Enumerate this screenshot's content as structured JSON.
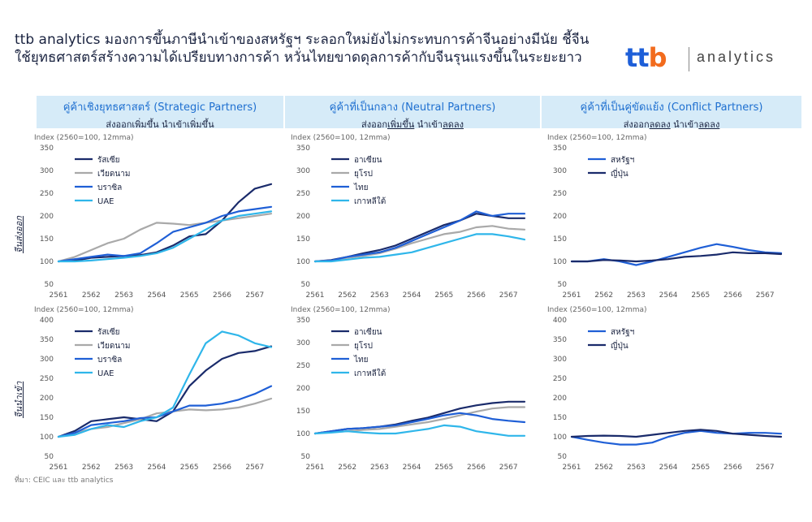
{
  "headline": "ttb analytics มองการขึ้นภาษีนำเข้าของสหรัฐฯ ระลอกใหม่ยังไม่กระทบการค้าจีนอย่างมีนัย ชี้จีนใช้ยุทธศาสตร์สร้างความได้เปรียบทางการค้า หวั่นไทยขาดดุลการค้ากับจีนรุนแรงขึ้นในระยะยาว",
  "logo": {
    "mark_t1": "t",
    "mark_t2": "t",
    "mark_b": "b",
    "word": "analytics",
    "colors": {
      "t": "#1e5fd8",
      "b": "#f26b1d"
    }
  },
  "columns": [
    {
      "title": "คู่ค้าเชิงยุทธศาสตร์ (Strategic Partners)",
      "sub_a": "ส่งออกเพิ่มขึ้น นำเข้าเพิ่มขึ้น",
      "sub_a_underline": "",
      "sub_b": "",
      "sub_b_underline": ""
    },
    {
      "title": "คู่ค้าที่เป็นกลาง (Neutral Partners)",
      "sub_a": "ส่งออก",
      "sub_a_underline": "เพิ่มขึ้น",
      "sub_b": " นำเข้า",
      "sub_b_underline": "ลดลง"
    },
    {
      "title": "คู่ค้าที่เป็นคู่ขัดแย้ง (Conflict Partners)",
      "sub_a": "ส่งออก",
      "sub_a_underline": "ลดลง",
      "sub_b": " นำเข้า",
      "sub_b_underline": "ลดลง"
    }
  ],
  "row_labels": [
    "จีนส่งออก",
    "จีนนำเข้า"
  ],
  "source": "ที่มา: CEIC และ ttb analytics",
  "colors": {
    "dark_navy": "#1a2b6b",
    "gray": "#a9a9a9",
    "blue": "#1f5fd6",
    "light_blue": "#2fb6ea",
    "header_bg": "#d6ebf8",
    "header_title": "#1e6fd0"
  },
  "chart_data": [
    {
      "id": "strategic-export",
      "type": "line",
      "ylabel": "Index (2560=100, 12mma)",
      "ylim": [
        50,
        350
      ],
      "yticks": [
        50,
        100,
        150,
        200,
        250,
        300,
        350
      ],
      "xlim": [
        2561,
        2567.6
      ],
      "xticks": [
        "2561",
        "2562",
        "2563",
        "2564",
        "2565",
        "2566",
        "2567"
      ],
      "grid": false,
      "legend": "top-left",
      "series": [
        {
          "name": "รัสเซีย",
          "color": "#1a2b6b",
          "x": [
            2561,
            2561.5,
            2562,
            2562.5,
            2563,
            2563.5,
            2564,
            2564.5,
            2565,
            2565.5,
            2566,
            2566.5,
            2567,
            2567.5
          ],
          "y": [
            100,
            102,
            108,
            110,
            112,
            114,
            120,
            135,
            155,
            160,
            190,
            230,
            260,
            270
          ]
        },
        {
          "name": "เวียดนาม",
          "color": "#a9a9a9",
          "x": [
            2561,
            2561.5,
            2562,
            2562.5,
            2563,
            2563.5,
            2564,
            2564.5,
            2565,
            2565.5,
            2566,
            2566.5,
            2567,
            2567.5
          ],
          "y": [
            100,
            110,
            125,
            140,
            150,
            170,
            185,
            183,
            180,
            185,
            190,
            195,
            200,
            205
          ]
        },
        {
          "name": "บราซิล",
          "color": "#1f5fd6",
          "x": [
            2561,
            2561.5,
            2562,
            2562.5,
            2563,
            2563.5,
            2564,
            2564.5,
            2565,
            2565.5,
            2566,
            2566.5,
            2567,
            2567.5
          ],
          "y": [
            100,
            105,
            110,
            115,
            112,
            118,
            140,
            165,
            175,
            185,
            200,
            210,
            215,
            220
          ]
        },
        {
          "name": "UAE",
          "color": "#2fb6ea",
          "x": [
            2561,
            2561.5,
            2562,
            2562.5,
            2563,
            2563.5,
            2564,
            2564.5,
            2565,
            2565.5,
            2566,
            2566.5,
            2567,
            2567.5
          ],
          "y": [
            100,
            100,
            102,
            105,
            108,
            112,
            118,
            130,
            150,
            170,
            190,
            200,
            205,
            210
          ]
        }
      ]
    },
    {
      "id": "neutral-export",
      "type": "line",
      "ylabel": "Index (2560=100, 12mma)",
      "ylim": [
        50,
        350
      ],
      "yticks": [
        50,
        100,
        150,
        200,
        250,
        300,
        350
      ],
      "xlim": [
        2561,
        2567.6
      ],
      "xticks": [
        "2561",
        "2562",
        "2563",
        "2564",
        "2565",
        "2566",
        "2567"
      ],
      "grid": false,
      "legend": "top-left",
      "series": [
        {
          "name": "อาเซียน",
          "color": "#1a2b6b",
          "x": [
            2561,
            2561.5,
            2562,
            2562.5,
            2563,
            2563.5,
            2564,
            2564.5,
            2565,
            2565.5,
            2566,
            2566.5,
            2567,
            2567.5
          ],
          "y": [
            100,
            103,
            110,
            118,
            125,
            135,
            150,
            165,
            180,
            190,
            205,
            200,
            195,
            195
          ]
        },
        {
          "name": "ยุโรป",
          "color": "#a9a9a9",
          "x": [
            2561,
            2561.5,
            2562,
            2562.5,
            2563,
            2563.5,
            2564,
            2564.5,
            2565,
            2565.5,
            2566,
            2566.5,
            2567,
            2567.5
          ],
          "y": [
            100,
            102,
            108,
            112,
            118,
            128,
            140,
            150,
            160,
            165,
            175,
            178,
            172,
            170
          ]
        },
        {
          "name": "ไทย",
          "color": "#1f5fd6",
          "x": [
            2561,
            2561.5,
            2562,
            2562.5,
            2563,
            2563.5,
            2564,
            2564.5,
            2565,
            2565.5,
            2566,
            2566.5,
            2567,
            2567.5
          ],
          "y": [
            100,
            102,
            110,
            115,
            120,
            130,
            145,
            160,
            175,
            190,
            210,
            200,
            205,
            205
          ]
        },
        {
          "name": "เกาหลีใต้",
          "color": "#2fb6ea",
          "x": [
            2561,
            2561.5,
            2562,
            2562.5,
            2563,
            2563.5,
            2564,
            2564.5,
            2565,
            2565.5,
            2566,
            2566.5,
            2567,
            2567.5
          ],
          "y": [
            100,
            100,
            104,
            108,
            110,
            115,
            120,
            130,
            140,
            150,
            160,
            160,
            155,
            148
          ]
        }
      ]
    },
    {
      "id": "conflict-export",
      "type": "line",
      "ylabel": "Index (2560=100, 12mma)",
      "ylim": [
        50,
        350
      ],
      "yticks": [
        50,
        100,
        150,
        200,
        250,
        300,
        350
      ],
      "xlim": [
        2561,
        2567.6
      ],
      "xticks": [
        "2561",
        "2562",
        "2563",
        "2564",
        "2565",
        "2566",
        "2567"
      ],
      "grid": false,
      "legend": "top-left",
      "series": [
        {
          "name": "สหรัฐฯ",
          "color": "#1f5fd6",
          "x": [
            2561,
            2561.5,
            2562,
            2562.5,
            2563,
            2563.5,
            2564,
            2564.5,
            2565,
            2565.5,
            2566,
            2566.5,
            2567,
            2567.5
          ],
          "y": [
            100,
            100,
            105,
            100,
            92,
            100,
            110,
            120,
            130,
            138,
            132,
            125,
            120,
            118
          ]
        },
        {
          "name": "ญี่ปุ่น",
          "color": "#1a2b6b",
          "x": [
            2561,
            2561.5,
            2562,
            2562.5,
            2563,
            2563.5,
            2564,
            2564.5,
            2565,
            2565.5,
            2566,
            2566.5,
            2567,
            2567.5
          ],
          "y": [
            100,
            100,
            103,
            102,
            100,
            102,
            105,
            110,
            112,
            115,
            120,
            118,
            118,
            116
          ]
        }
      ]
    },
    {
      "id": "strategic-import",
      "type": "line",
      "ylabel": "Index (2560=100, 12mma)",
      "ylim": [
        50,
        400
      ],
      "yticks": [
        50,
        100,
        150,
        200,
        250,
        300,
        350,
        400
      ],
      "xlim": [
        2561,
        2567.6
      ],
      "xticks": [
        "2561",
        "2562",
        "2563",
        "2564",
        "2565",
        "2566",
        "2567"
      ],
      "grid": false,
      "legend": "top-left",
      "series": [
        {
          "name": "รัสเซีย",
          "color": "#1a2b6b",
          "x": [
            2561,
            2561.5,
            2562,
            2562.5,
            2563,
            2563.5,
            2564,
            2564.5,
            2565,
            2565.5,
            2566,
            2566.5,
            2567,
            2567.5
          ],
          "y": [
            100,
            115,
            140,
            145,
            150,
            145,
            140,
            165,
            230,
            270,
            300,
            315,
            320,
            332
          ]
        },
        {
          "name": "เวียดนาม",
          "color": "#a9a9a9",
          "x": [
            2561,
            2561.5,
            2562,
            2562.5,
            2563,
            2563.5,
            2564,
            2564.5,
            2565,
            2565.5,
            2566,
            2566.5,
            2567,
            2567.5
          ],
          "y": [
            100,
            110,
            120,
            125,
            135,
            145,
            160,
            165,
            170,
            168,
            170,
            175,
            185,
            198
          ]
        },
        {
          "name": "บราซิล",
          "color": "#1f5fd6",
          "x": [
            2561,
            2561.5,
            2562,
            2562.5,
            2563,
            2563.5,
            2564,
            2564.5,
            2565,
            2565.5,
            2566,
            2566.5,
            2567,
            2567.5
          ],
          "y": [
            100,
            110,
            130,
            135,
            140,
            148,
            150,
            165,
            180,
            180,
            185,
            195,
            210,
            230
          ]
        },
        {
          "name": "UAE",
          "color": "#2fb6ea",
          "x": [
            2561,
            2561.5,
            2562,
            2562.5,
            2563,
            2563.5,
            2564,
            2564.5,
            2565,
            2565.5,
            2566,
            2566.5,
            2567,
            2567.5
          ],
          "y": [
            100,
            105,
            120,
            130,
            125,
            140,
            150,
            175,
            260,
            340,
            370,
            360,
            340,
            330
          ]
        }
      ]
    },
    {
      "id": "neutral-import",
      "type": "line",
      "ylabel": "Index (2560=100, 12mma)",
      "ylim": [
        50,
        350
      ],
      "yticks": [
        50,
        100,
        150,
        200,
        250,
        300,
        350
      ],
      "xlim": [
        2561,
        2567.6
      ],
      "xticks": [
        "2561",
        "2562",
        "2563",
        "2564",
        "2565",
        "2566",
        "2567"
      ],
      "grid": false,
      "legend": "top-left",
      "series": [
        {
          "name": "อาเซียน",
          "color": "#1a2b6b",
          "x": [
            2561,
            2561.5,
            2562,
            2562.5,
            2563,
            2563.5,
            2564,
            2564.5,
            2565,
            2565.5,
            2566,
            2566.5,
            2567,
            2567.5
          ],
          "y": [
            100,
            105,
            110,
            112,
            115,
            120,
            128,
            135,
            145,
            155,
            162,
            167,
            170,
            170
          ]
        },
        {
          "name": "ยุโรป",
          "color": "#a9a9a9",
          "x": [
            2561,
            2561.5,
            2562,
            2562.5,
            2563,
            2563.5,
            2564,
            2564.5,
            2565,
            2565.5,
            2566,
            2566.5,
            2567,
            2567.5
          ],
          "y": [
            100,
            103,
            105,
            108,
            110,
            115,
            120,
            125,
            132,
            140,
            148,
            155,
            158,
            158
          ]
        },
        {
          "name": "ไทย",
          "color": "#1f5fd6",
          "x": [
            2561,
            2561.5,
            2562,
            2562.5,
            2563,
            2563.5,
            2564,
            2564.5,
            2565,
            2565.5,
            2566,
            2566.5,
            2567,
            2567.5
          ],
          "y": [
            100,
            105,
            110,
            112,
            115,
            118,
            125,
            132,
            140,
            145,
            140,
            132,
            128,
            125
          ]
        },
        {
          "name": "เกาหลีใต้",
          "color": "#2fb6ea",
          "x": [
            2561,
            2561.5,
            2562,
            2562.5,
            2563,
            2563.5,
            2564,
            2564.5,
            2565,
            2565.5,
            2566,
            2566.5,
            2567,
            2567.5
          ],
          "y": [
            100,
            102,
            105,
            102,
            100,
            100,
            105,
            110,
            118,
            115,
            105,
            100,
            95,
            95
          ]
        }
      ]
    },
    {
      "id": "conflict-import",
      "type": "line",
      "ylabel": "Index (2560=100, 12mma)",
      "ylim": [
        50,
        400
      ],
      "yticks": [
        50,
        100,
        150,
        200,
        250,
        300,
        350,
        400
      ],
      "xlim": [
        2561,
        2567.6
      ],
      "xticks": [
        "2561",
        "2562",
        "2563",
        "2564",
        "2565",
        "2566",
        "2567"
      ],
      "grid": false,
      "legend": "top-left",
      "series": [
        {
          "name": "สหรัฐฯ",
          "color": "#1f5fd6",
          "x": [
            2561,
            2561.5,
            2562,
            2562.5,
            2563,
            2563.5,
            2564,
            2564.5,
            2565,
            2565.5,
            2566,
            2566.5,
            2567,
            2567.5
          ],
          "y": [
            100,
            92,
            85,
            80,
            80,
            85,
            100,
            110,
            115,
            110,
            108,
            110,
            110,
            108
          ]
        },
        {
          "name": "ญี่ปุ่น",
          "color": "#1a2b6b",
          "x": [
            2561,
            2561.5,
            2562,
            2562.5,
            2563,
            2563.5,
            2564,
            2564.5,
            2565,
            2565.5,
            2566,
            2566.5,
            2567,
            2567.5
          ],
          "y": [
            100,
            102,
            103,
            102,
            100,
            105,
            110,
            115,
            118,
            115,
            108,
            105,
            102,
            100
          ]
        }
      ]
    }
  ]
}
